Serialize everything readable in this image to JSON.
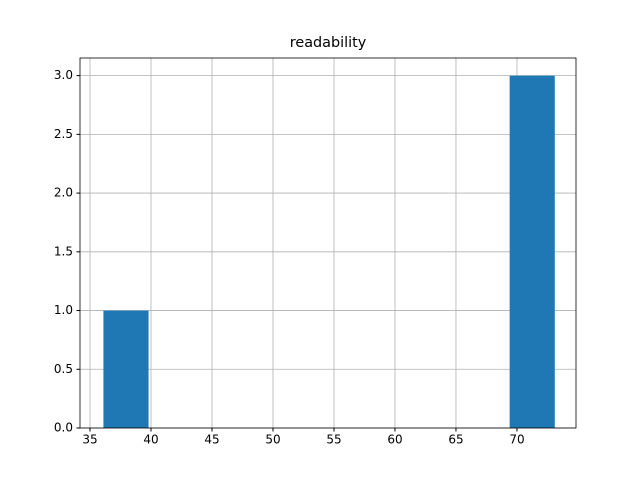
{
  "chart_data": {
    "type": "histogram",
    "title": "readability",
    "bins": [
      36.1,
      39.8,
      43.5,
      47.2,
      50.9,
      54.6,
      58.3,
      62.0,
      65.7,
      69.4,
      73.1
    ],
    "values": [
      1,
      0,
      0,
      0,
      0,
      0,
      0,
      0,
      0,
      3
    ],
    "color": "#1f77b4",
    "xlim": [
      34.18,
      74.84
    ],
    "xticks": [
      35,
      40,
      45,
      50,
      55,
      60,
      65,
      70
    ],
    "ylim": [
      0,
      3.15
    ],
    "yticks": [
      {
        "value": 0,
        "label": "0.0"
      },
      {
        "value": 0.5,
        "label": "0.5"
      },
      {
        "value": 1,
        "label": "1.0"
      },
      {
        "value": 1.5,
        "label": "1.5"
      },
      {
        "value": 2,
        "label": "2.0"
      },
      {
        "value": 2.5,
        "label": "2.5"
      },
      {
        "value": 3,
        "label": "3.0"
      }
    ],
    "grid": true
  }
}
